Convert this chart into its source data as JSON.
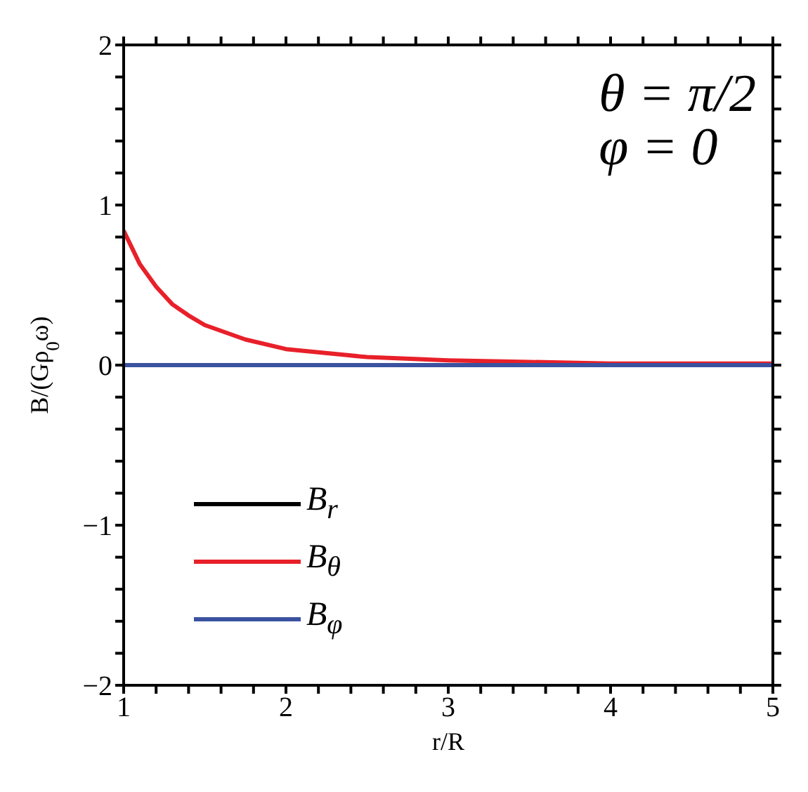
{
  "chart_data": {
    "type": "line",
    "xlabel": "r/R",
    "ylabel": "B/(Gρ$_{0}$ω)",
    "annotations": [
      "θ = π/2",
      "φ = 0"
    ],
    "x": [
      1,
      1.1,
      1.2,
      1.3,
      1.4,
      1.5,
      1.75,
      2,
      2.5,
      3,
      3.5,
      4,
      4.5,
      5
    ],
    "series": [
      {
        "name": "B$_{r}$",
        "color": "#000000",
        "values": [
          null,
          null,
          null,
          null,
          null,
          null,
          null,
          null,
          null,
          null,
          null,
          null,
          null,
          null
        ]
      },
      {
        "name": "B$_{θ}$",
        "color": "#e8202a",
        "values": [
          0.84,
          0.63,
          0.49,
          0.38,
          0.31,
          0.25,
          0.16,
          0.1,
          0.05,
          0.03,
          0.02,
          0.01,
          0.01,
          0.01
        ]
      },
      {
        "name": "B$_{φ}$",
        "color": "#3a52a0",
        "values": [
          0,
          0,
          0,
          0,
          0,
          0,
          0,
          0,
          0,
          0,
          0,
          0,
          0,
          0
        ]
      }
    ],
    "xlim": [
      1,
      5
    ],
    "ylim": [
      -2,
      2
    ],
    "xticks": [
      1,
      {
        "value": 1.2,
        "label": null
      },
      {
        "value": 1.4,
        "label": null
      },
      {
        "value": 1.6,
        "label": null
      },
      {
        "value": 1.8,
        "label": null
      },
      2,
      {
        "value": 2.2,
        "label": null
      },
      {
        "value": 2.4,
        "label": null
      },
      {
        "value": 2.6,
        "label": null
      },
      {
        "value": 2.8,
        "label": null
      },
      3,
      {
        "value": 3.2,
        "label": null
      },
      {
        "value": 3.4,
        "label": null
      },
      {
        "value": 3.6,
        "label": null
      },
      {
        "value": 3.8,
        "label": null
      },
      4,
      {
        "value": 4.2,
        "label": null
      },
      {
        "value": 4.4,
        "label": null
      },
      {
        "value": 4.6,
        "label": null
      },
      {
        "value": 4.8,
        "label": null
      },
      5
    ],
    "yticks": [
      -2,
      {
        "value": -1.8,
        "label": null
      },
      {
        "value": -1.6,
        "label": null
      },
      {
        "value": -1.4,
        "label": null
      },
      {
        "value": -1.2,
        "label": null
      },
      -1,
      {
        "value": -0.8,
        "label": null
      },
      {
        "value": -0.6,
        "label": null
      },
      {
        "value": -0.4,
        "label": null
      },
      {
        "value": -0.2,
        "label": null
      },
      0,
      {
        "value": 0.2,
        "label": null
      },
      {
        "value": 0.4,
        "label": null
      },
      {
        "value": 0.6,
        "label": null
      },
      {
        "value": 0.8,
        "label": null
      },
      1,
      {
        "value": 1.2,
        "label": null
      },
      {
        "value": 1.4,
        "label": null
      },
      {
        "value": 1.6,
        "label": null
      },
      {
        "value": 1.8,
        "label": null
      },
      2
    ],
    "grid": false,
    "legend": "bottom left",
    "marker": "none",
    "line_style": "solid"
  }
}
